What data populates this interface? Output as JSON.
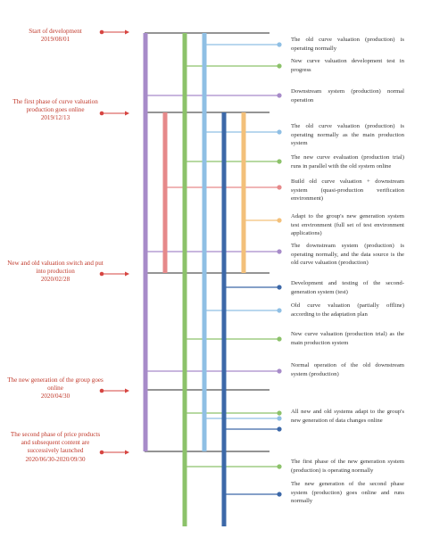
{
  "colors": {
    "milestone_text": "#c0392b",
    "milestone_dot": "#d64541",
    "axis": "#555555",
    "description_text": "#333333",
    "lane_purple": "#a78bc9",
    "lane_green": "#8cc26a",
    "lane_lightblue": "#8fbfe4",
    "lane_red": "#e6898a",
    "lane_darkblue": "#3c68a8",
    "lane_orange": "#f3c07a"
  },
  "milestones": [
    {
      "title": "Start of development",
      "date": "2019/08/01"
    },
    {
      "title": "The first phase of curve valuation production goes online",
      "date": "2019/12/13"
    },
    {
      "title": "New and old valuation switch and put into production",
      "date": "2020/02/28"
    },
    {
      "title": "The new generation of the group goes online",
      "date": "2020/04/30"
    },
    {
      "title": "The second phase of price products and subsequent content are successively launched",
      "date": "2020/06/30-2020/09/30"
    }
  ],
  "descriptions": [
    "The old curve valuation (production) is operating normally",
    "New curve valuation development test in progress",
    "Downstream system (production) normal operation",
    "The old curve valuation (production) is operating normally as the main production system",
    "The new curve evaluation (production trial) runs in parallel with the old system online",
    "Build old curve valuation + downstream system (quasi-production verification environment)",
    "Adapt to the group's new generation system test environment (full set of test environment applications)",
    "The downstream system (production) is operating normally, and the data source is the old curve valuation (production)",
    "Development and testing of the second-generation system (test)",
    "Old curve valuation (partially offline) according to the adaptation plan",
    "New curve valuation (production trial) as the main production system",
    "Normal operation of the old downstream system (production)",
    "All new and old systems adapt to the group's new generation of data changes online",
    "The first phase of the new generation system (production) is operating normally",
    "The new generation of the second phase system (production) goes online and runs normally"
  ]
}
